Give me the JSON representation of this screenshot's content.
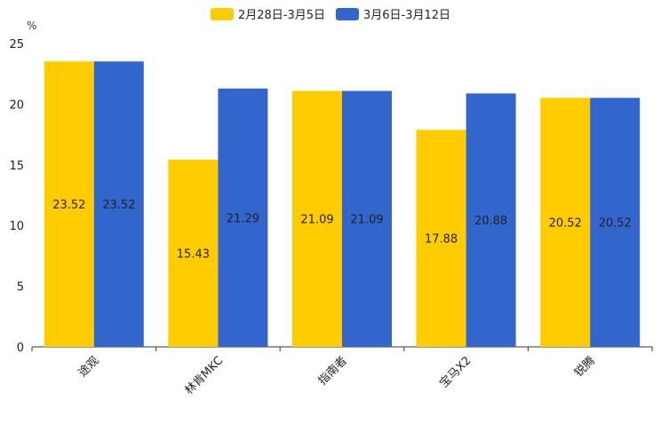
{
  "chart_data": {
    "type": "bar",
    "title": "",
    "unit_label": "%",
    "categories": [
      "途观",
      "林肯MKC",
      "指南者",
      "宝马X2",
      "锐腾"
    ],
    "series": [
      {
        "name": "2月28日-3月5日",
        "color": "#FFCC00",
        "values": [
          23.52,
          15.43,
          21.09,
          17.88,
          20.52
        ]
      },
      {
        "name": "3月6日-3月12日",
        "color": "#3366CC",
        "values": [
          23.52,
          21.29,
          21.09,
          20.88,
          20.52
        ]
      }
    ],
    "ylim": [
      0,
      25
    ],
    "yticks": [
      0,
      5,
      10,
      15,
      20,
      25
    ],
    "xlabel": "",
    "ylabel": "%",
    "legend_position": "top-center",
    "grid": false
  }
}
